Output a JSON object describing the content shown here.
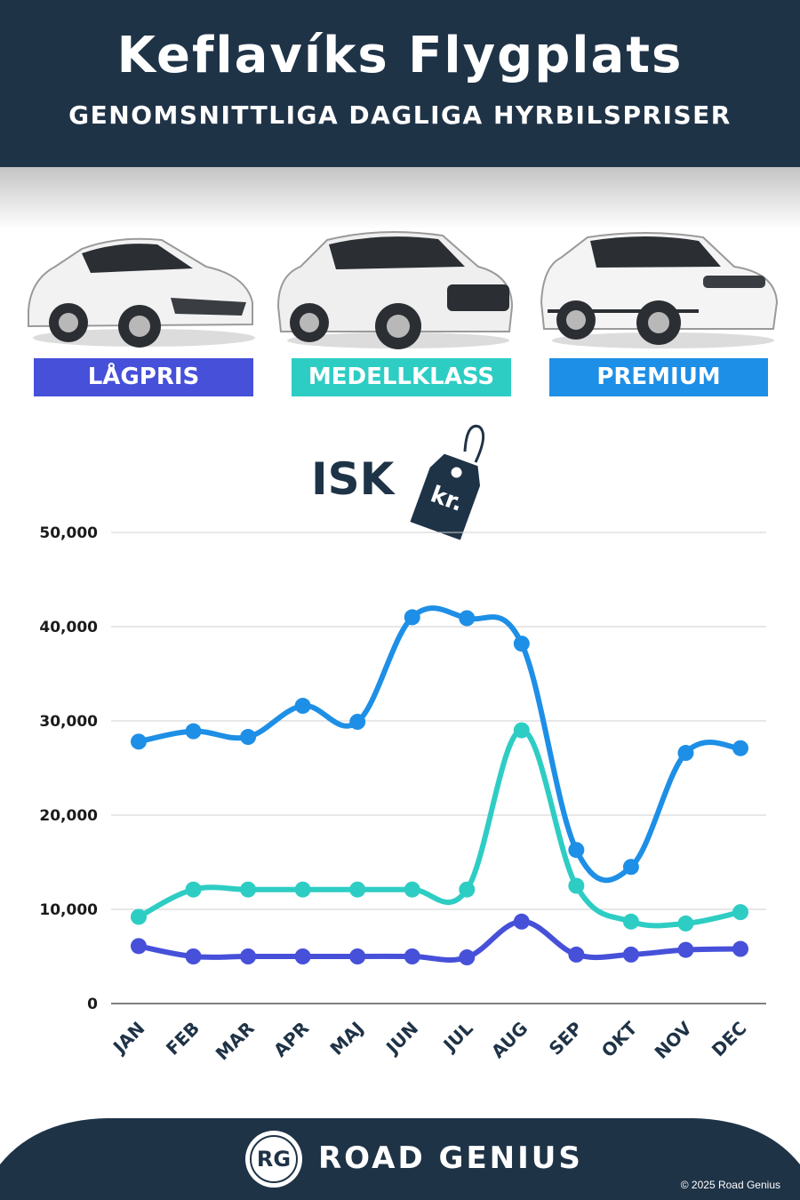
{
  "header": {
    "title": "Keflavíks Flygplats",
    "subtitle": "GENOMSNITTLIGA DAGLIGA HYRBILSPRISER"
  },
  "categories_badges": [
    {
      "label": "LÅGPRIS",
      "color": "#4650d9"
    },
    {
      "label": "MEDELLKLASS",
      "color": "#2ecdc4"
    },
    {
      "label": "PREMIUM",
      "color": "#1e8fe6"
    }
  ],
  "currency": {
    "label": "ISK",
    "tag_text": "kr."
  },
  "chart_data": {
    "type": "line",
    "categories": [
      "JAN",
      "FEB",
      "MAR",
      "APR",
      "MAJ",
      "JUN",
      "JUL",
      "AUG",
      "SEP",
      "OKT",
      "NOV",
      "DEC"
    ],
    "series": [
      {
        "name": "LÅGPRIS",
        "color": "#4650d9",
        "values": [
          6100,
          5000,
          5000,
          5000,
          5000,
          5000,
          4900,
          8700,
          5200,
          5200,
          5700,
          5800
        ]
      },
      {
        "name": "MEDELLKLASS",
        "color": "#2ecdc4",
        "values": [
          9200,
          12100,
          12100,
          12100,
          12100,
          12100,
          12100,
          29000,
          12500,
          8700,
          8500,
          9700
        ]
      },
      {
        "name": "PREMIUM",
        "color": "#1e8fe6",
        "values": [
          27800,
          28900,
          28300,
          31600,
          29900,
          41000,
          40900,
          38200,
          16300,
          14500,
          26600,
          27100
        ]
      }
    ],
    "yticks": [
      "0",
      "10,000",
      "20,000",
      "30,000",
      "40,000",
      "50,000"
    ],
    "ylim": [
      0,
      50000
    ],
    "grid": true
  },
  "footer": {
    "brand": "ROAD GENIUS",
    "logo_text": "RG",
    "copyright": "© 2025 Road Genius"
  },
  "colors": {
    "navy": "#1f3347"
  }
}
